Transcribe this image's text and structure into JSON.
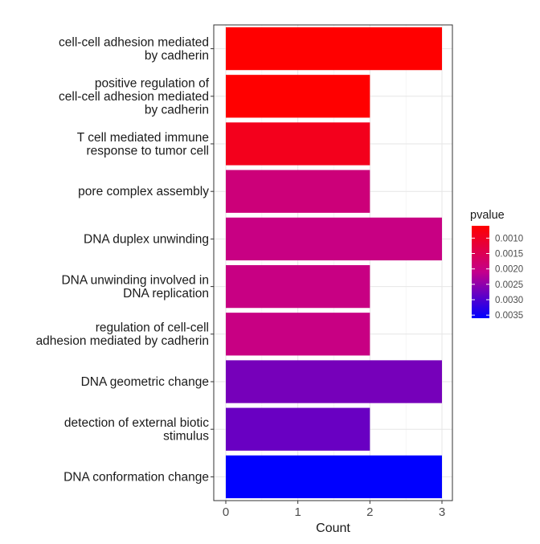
{
  "chart_data": {
    "type": "bar",
    "orientation": "horizontal",
    "xlabel": "Count",
    "ylabel": "",
    "xlim": [
      -0.15,
      3.15
    ],
    "x_ticks": [
      0,
      1,
      2,
      3
    ],
    "grid": true,
    "categories": [
      [
        "cell-cell adhesion mediated",
        "by cadherin"
      ],
      [
        "positive regulation of",
        "cell-cell adhesion mediated",
        "by cadherin"
      ],
      [
        "T cell mediated immune",
        "response to tumor cell"
      ],
      [
        "pore complex assembly"
      ],
      [
        "DNA duplex unwinding"
      ],
      [
        "DNA unwinding involved in",
        "DNA replication"
      ],
      [
        "regulation of cell-cell",
        "adhesion mediated by cadherin"
      ],
      [
        "DNA geometric change"
      ],
      [
        "detection of external biotic",
        "stimulus"
      ],
      [
        "DNA conformation change"
      ]
    ],
    "values": [
      3,
      2,
      2,
      2,
      3,
      2,
      2,
      3,
      2,
      3
    ],
    "pvalue": [
      0.0006,
      0.0006,
      0.0009,
      0.0019,
      0.002,
      0.002,
      0.002,
      0.0027,
      0.0028,
      0.0036
    ],
    "legend": {
      "title": "pvalue",
      "position": "right",
      "ticks": [
        "0.0010",
        "0.0015",
        "0.0020",
        "0.0025",
        "0.0030",
        "0.0035"
      ],
      "range": [
        0.0006,
        0.0036
      ],
      "low_color": "#FF0000",
      "mid_color": "#C4008C",
      "high_color": "#0000FF"
    }
  }
}
